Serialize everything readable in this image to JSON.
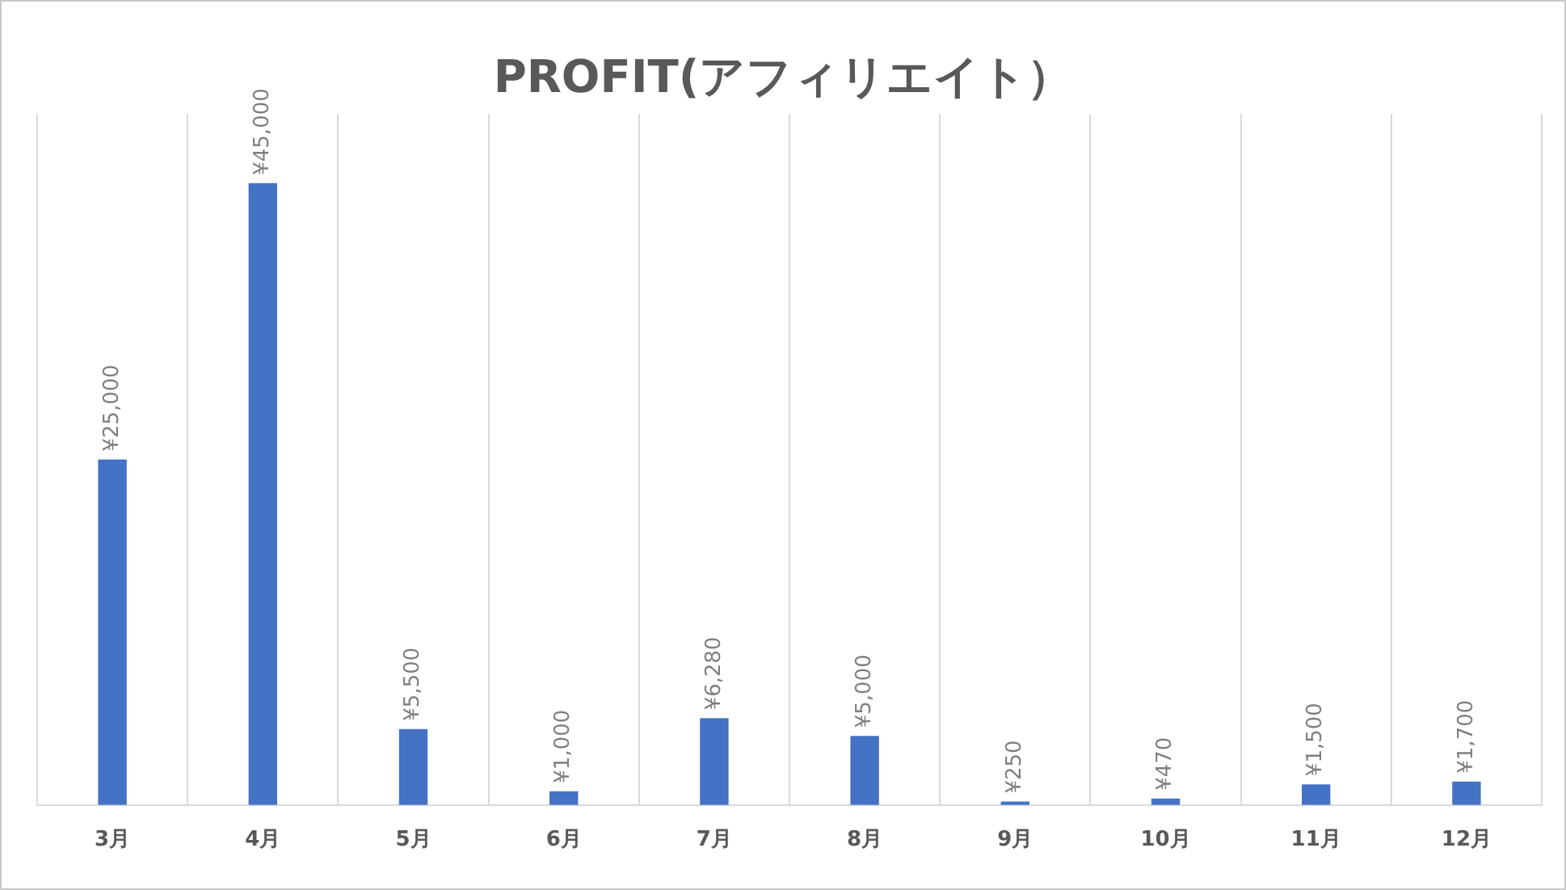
{
  "chart_data": {
    "type": "bar",
    "title": "PROFIT(アフィリエイト）",
    "categories": [
      "3月",
      "4月",
      "5月",
      "6月",
      "7月",
      "8月",
      "9月",
      "10月",
      "11月",
      "12月"
    ],
    "values": [
      25000,
      45000,
      5500,
      1000,
      6280,
      5000,
      250,
      470,
      1500,
      1700
    ],
    "value_labels": [
      "¥25,000",
      "¥45,000",
      "¥5,500",
      "¥1,000",
      "¥6,280",
      "¥5,000",
      "¥250",
      "¥470",
      "¥1,500",
      "¥1,700"
    ],
    "color": "#4472c4",
    "ylim": [
      0,
      50000
    ],
    "grid": "x",
    "tick_labels": "x",
    "legend": false
  }
}
